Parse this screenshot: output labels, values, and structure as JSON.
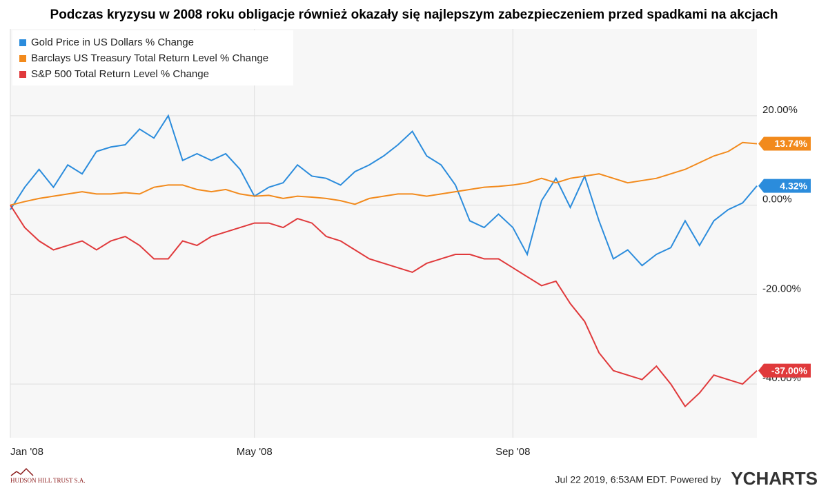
{
  "chart_data": {
    "type": "line",
    "title": "Podczas kryzysu w 2008 roku obligacje również okazały się najlepszym zabezpieczeniem przed spadkami na akcjach",
    "categories": [
      "Jan '08",
      null,
      null,
      null,
      null,
      null,
      null,
      null,
      null,
      null,
      null,
      null,
      null,
      null,
      null,
      null,
      null,
      "May '08",
      null,
      null,
      null,
      null,
      null,
      null,
      null,
      null,
      null,
      null,
      null,
      null,
      null,
      null,
      null,
      null,
      null,
      "Sep '08",
      null,
      null,
      null,
      null,
      null,
      null,
      null,
      null,
      null,
      null,
      null,
      null,
      null,
      null,
      null,
      null,
      null
    ],
    "series": [
      {
        "name": "Gold Price in US Dollars % Change",
        "color": "#2b8cdc",
        "end_label": "4.32%",
        "values": [
          -1,
          4,
          8,
          4,
          9,
          7,
          12,
          13,
          13.5,
          17,
          15,
          20,
          10,
          11.5,
          10,
          11.5,
          8,
          2,
          4,
          5,
          9,
          6.5,
          6,
          4.5,
          7.5,
          9,
          11,
          13.5,
          16.5,
          11,
          9,
          4.5,
          -3.5,
          -5,
          -2,
          -5,
          -11,
          1,
          6,
          -0.5,
          6.5,
          -3.5,
          -12,
          -10,
          -13.5,
          -11,
          -9.5,
          -3.5,
          -9,
          -3.5,
          -1,
          0.5,
          4.32
        ]
      },
      {
        "name": "Barclays US Treasury Total Return Level % Change",
        "color": "#f28a1c",
        "end_label": "13.74%",
        "values": [
          0,
          0.8,
          1.5,
          2,
          2.5,
          3,
          2.5,
          2.5,
          2.8,
          2.5,
          4,
          4.5,
          4.5,
          3.5,
          3,
          3.5,
          2.5,
          2,
          2.2,
          1.5,
          2,
          1.8,
          1.5,
          1,
          0.2,
          1.5,
          2,
          2.5,
          2.5,
          2,
          2.5,
          3,
          3.5,
          4,
          4.2,
          4.5,
          5,
          6,
          5,
          6,
          6.5,
          7,
          6,
          5,
          5.5,
          6,
          7,
          8,
          9.5,
          11,
          12,
          14,
          13.74
        ]
      },
      {
        "name": "S&P 500 Total Return Level % Change",
        "color": "#e0393b",
        "end_label": "-37.00%",
        "values": [
          0,
          -5,
          -8,
          -10,
          -9,
          -8,
          -10,
          -8,
          -7,
          -9,
          -12,
          -12,
          -8,
          -9,
          -7,
          -6,
          -5,
          -4,
          -4,
          -5,
          -3,
          -4,
          -7,
          -8,
          -10,
          -12,
          -13,
          -14,
          -15,
          -13,
          -12,
          -11,
          -11,
          -12,
          -12,
          -14,
          -16,
          -18,
          -17,
          -22,
          -26,
          -33,
          -37,
          -38,
          -39,
          -36,
          -40,
          -45,
          -42,
          -38,
          -39,
          -40,
          -37
        ]
      }
    ],
    "ylim": [
      -52,
      39.4
    ],
    "yticks": [
      {
        "value": -40,
        "label": "-40.00%"
      },
      {
        "value": -20,
        "label": "-20.00%"
      },
      {
        "value": 0,
        "label": "0.00%"
      },
      {
        "value": 20,
        "label": "20.00%"
      }
    ],
    "grid": true
  },
  "footer": {
    "timestamp": "Jul 22 2019, 6:53AM EDT.  Powered by",
    "brand": "YCHARTS",
    "logo": "HUDSON HILL TRUST S.A."
  }
}
